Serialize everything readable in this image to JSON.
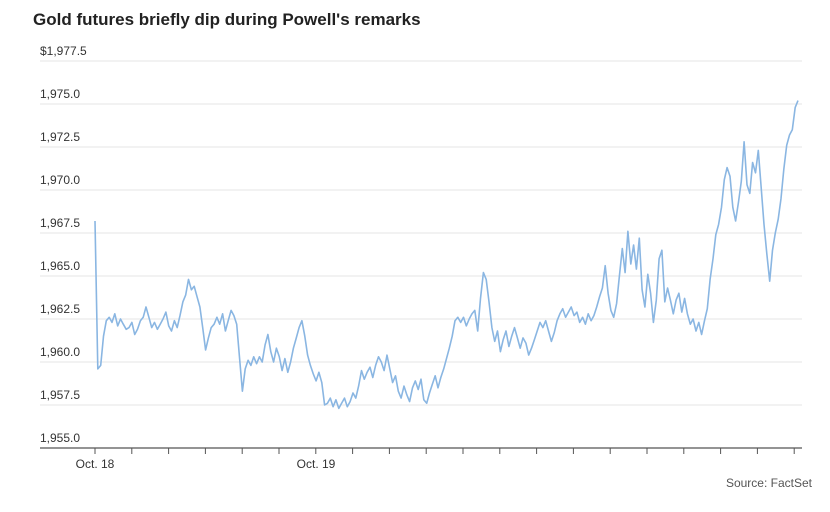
{
  "chart_data": {
    "type": "line",
    "title": "Gold futures briefly dip during Powell's remarks",
    "source": "Source: FactSet",
    "xlabel": "",
    "ylabel": "",
    "y_ticks": [
      "$1,977.5",
      "1,975.0",
      "1,972.5",
      "1,970.0",
      "1,967.5",
      "1,965.0",
      "1,962.5",
      "1,960.0",
      "1,957.5",
      "1,955.0"
    ],
    "x_tick_labels": [
      "Oct. 18",
      "Oct. 19"
    ],
    "ylim": [
      1955.0,
      1977.5
    ],
    "grid": true,
    "line_color": "#8ab6e2",
    "series": [
      {
        "values": [
          1968.2,
          1959.6,
          1959.8,
          1961.5,
          1962.4,
          1962.6,
          1962.3,
          1962.8,
          1962.1,
          1962.5,
          1962.2,
          1961.9,
          1962.0,
          1962.3,
          1961.6,
          1961.9,
          1962.4,
          1962.6,
          1963.2,
          1962.6,
          1962.0,
          1962.3,
          1961.9,
          1962.2,
          1962.5,
          1962.9,
          1962.1,
          1961.8,
          1962.4,
          1962.0,
          1962.7,
          1963.5,
          1963.9,
          1964.8,
          1964.2,
          1964.4,
          1963.8,
          1963.2,
          1962.0,
          1960.7,
          1961.4,
          1962.0,
          1962.2,
          1962.6,
          1962.2,
          1962.8,
          1961.8,
          1962.4,
          1963.0,
          1962.7,
          1962.2,
          1960.2,
          1958.3,
          1959.6,
          1960.1,
          1959.8,
          1960.3,
          1959.9,
          1960.3,
          1960.0,
          1961.0,
          1961.6,
          1960.6,
          1960.0,
          1960.8,
          1960.3,
          1959.5,
          1960.2,
          1959.4,
          1960.0,
          1960.8,
          1961.4,
          1962.0,
          1962.4,
          1961.5,
          1960.4,
          1959.8,
          1959.3,
          1958.9,
          1959.4,
          1958.8,
          1957.5,
          1957.6,
          1957.9,
          1957.4,
          1957.8,
          1957.3,
          1957.6,
          1957.9,
          1957.4,
          1957.7,
          1958.2,
          1957.9,
          1958.6,
          1959.5,
          1959.0,
          1959.4,
          1959.7,
          1959.1,
          1959.8,
          1960.3,
          1960.0,
          1959.5,
          1960.4,
          1959.6,
          1958.8,
          1959.2,
          1958.3,
          1957.9,
          1958.6,
          1958.1,
          1957.7,
          1958.5,
          1958.9,
          1958.4,
          1959.0,
          1957.8,
          1957.6,
          1958.2,
          1958.7,
          1959.2,
          1958.5,
          1959.1,
          1959.6,
          1960.2,
          1960.8,
          1961.5,
          1962.4,
          1962.6,
          1962.3,
          1962.6,
          1962.1,
          1962.5,
          1962.8,
          1963.0,
          1961.8,
          1963.7,
          1965.2,
          1964.8,
          1963.5,
          1962.0,
          1961.2,
          1961.8,
          1960.6,
          1961.3,
          1961.8,
          1960.9,
          1961.5,
          1962.0,
          1961.4,
          1960.8,
          1961.4,
          1961.1,
          1960.4,
          1960.8,
          1961.3,
          1961.8,
          1962.3,
          1962.0,
          1962.4,
          1961.8,
          1961.2,
          1961.7,
          1962.4,
          1962.8,
          1963.1,
          1962.6,
          1962.9,
          1963.2,
          1962.7,
          1962.9,
          1962.3,
          1962.6,
          1962.2,
          1962.8,
          1962.4,
          1962.7,
          1963.2,
          1963.8,
          1964.3,
          1965.6,
          1964.0,
          1963.0,
          1962.6,
          1963.4,
          1965.0,
          1966.6,
          1965.2,
          1967.6,
          1965.7,
          1966.8,
          1965.4,
          1967.2,
          1964.2,
          1963.2,
          1965.1,
          1964.0,
          1962.3,
          1963.6,
          1966.0,
          1966.5,
          1963.5,
          1964.3,
          1963.6,
          1962.8,
          1963.6,
          1964.0,
          1962.9,
          1963.7,
          1962.8,
          1962.2,
          1962.5,
          1961.8,
          1962.3,
          1961.6,
          1962.4,
          1963.1,
          1964.8,
          1966.0,
          1967.4,
          1968.0,
          1969.0,
          1970.6,
          1971.3,
          1970.8,
          1969.0,
          1968.2,
          1969.3,
          1970.5,
          1972.8,
          1970.3,
          1969.8,
          1971.6,
          1971.0,
          1972.3,
          1970.2,
          1968.0,
          1966.3,
          1964.7,
          1966.5,
          1967.5,
          1968.3,
          1969.5,
          1971.2,
          1972.6,
          1973.2,
          1973.5,
          1974.8,
          1975.2
        ]
      }
    ]
  }
}
